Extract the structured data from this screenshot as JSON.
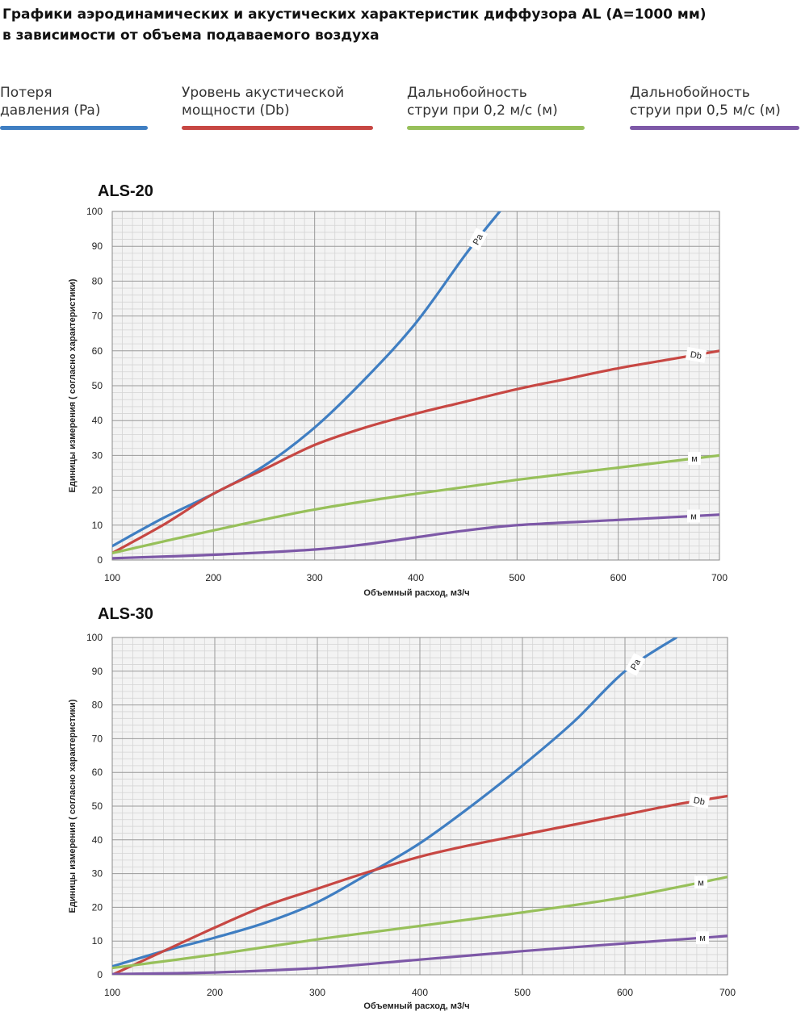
{
  "header": {
    "title_line1": "Графики аэродинамических и акустических характеристик диффузора AL (A=1000 мм)",
    "title_line2": "в зависимости от объема подаваемого воздуха"
  },
  "legend": [
    {
      "line1": "Потеря",
      "line2": "давления (Pa)",
      "color": "#3f7ec2"
    },
    {
      "line1": "Уровень акустической",
      "line2": "мощности (Db)",
      "color": "#c74743"
    },
    {
      "line1": "Дальнобойность",
      "line2": "струи при 0,2 м/с (м)",
      "color": "#97c05a"
    },
    {
      "line1": "Дальнобойность",
      "line2": "струи при 0,5 м/с (м)",
      "color": "#7d58a7"
    }
  ],
  "chart_data": [
    {
      "type": "line",
      "title": "ALS-20",
      "xlabel": "Объемный расход, м3/ч",
      "ylabel": "Единицы измерения ( согласно характеристики)",
      "xlim": [
        100,
        700
      ],
      "ylim": [
        0,
        100
      ],
      "xticks": [
        "100",
        "200",
        "300",
        "400",
        "500",
        "600",
        "700"
      ],
      "yticks": [
        "0",
        "10",
        "20",
        "30",
        "40",
        "50",
        "60",
        "70",
        "80",
        "90",
        "100"
      ],
      "grid": true,
      "series": [
        {
          "name": "Pa",
          "color": "#3f7ec2",
          "x": [
            100,
            150,
            200,
            250,
            300,
            350,
            400,
            450,
            483
          ],
          "y": [
            4,
            12,
            19,
            27,
            38,
            52,
            68,
            88,
            100
          ]
        },
        {
          "name": "Db",
          "color": "#c74743",
          "x": [
            100,
            150,
            200,
            250,
            300,
            350,
            400,
            450,
            500,
            550,
            600,
            650,
            700
          ],
          "y": [
            2,
            10,
            19,
            26,
            33,
            38,
            42,
            45.5,
            49,
            52,
            55,
            57.5,
            60
          ]
        },
        {
          "name": "м",
          "color": "#97c05a",
          "x": [
            100,
            200,
            300,
            400,
            500,
            600,
            700
          ],
          "y": [
            2,
            8.5,
            14.5,
            19,
            23,
            26.5,
            30
          ]
        },
        {
          "name": "м",
          "color": "#7d58a7",
          "x": [
            100,
            200,
            300,
            350,
            400,
            450,
            500,
            600,
            700
          ],
          "y": [
            0.5,
            1.5,
            3,
            4.5,
            6.5,
            8.5,
            10,
            11.5,
            13
          ]
        }
      ]
    },
    {
      "type": "line",
      "title": "ALS-30",
      "xlabel": "Объемный расход, м3/ч",
      "ylabel": "Единицы измерения ( согласно характеристики)",
      "xlim": [
        100,
        700
      ],
      "ylim": [
        0,
        100
      ],
      "xticks": [
        "100",
        "200",
        "300",
        "400",
        "500",
        "600",
        "700"
      ],
      "yticks": [
        "0",
        "10",
        "20",
        "30",
        "40",
        "50",
        "60",
        "70",
        "80",
        "90",
        "100"
      ],
      "grid": true,
      "series": [
        {
          "name": "Pa",
          "color": "#3f7ec2",
          "x": [
            100,
            150,
            200,
            250,
            300,
            350,
            400,
            450,
            500,
            550,
            600,
            650
          ],
          "y": [
            2.5,
            7,
            11,
            15.5,
            21.5,
            30,
            39,
            50,
            62,
            75,
            90,
            100
          ]
        },
        {
          "name": "Db",
          "color": "#c74743",
          "x": [
            100,
            150,
            200,
            250,
            300,
            350,
            400,
            450,
            500,
            550,
            600,
            650,
            700
          ],
          "y": [
            0,
            7,
            14,
            20.5,
            25.5,
            30.5,
            35,
            38.5,
            41.5,
            44.5,
            47.5,
            50.5,
            53
          ]
        },
        {
          "name": "м",
          "color": "#97c05a",
          "x": [
            100,
            200,
            300,
            400,
            500,
            600,
            700
          ],
          "y": [
            2,
            6,
            10.5,
            14.5,
            18.5,
            23,
            29
          ]
        },
        {
          "name": "м",
          "color": "#7d58a7",
          "x": [
            100,
            200,
            300,
            400,
            500,
            600,
            700
          ],
          "y": [
            0.2,
            0.7,
            2,
            4.5,
            7,
            9.3,
            11.5
          ]
        }
      ]
    }
  ]
}
